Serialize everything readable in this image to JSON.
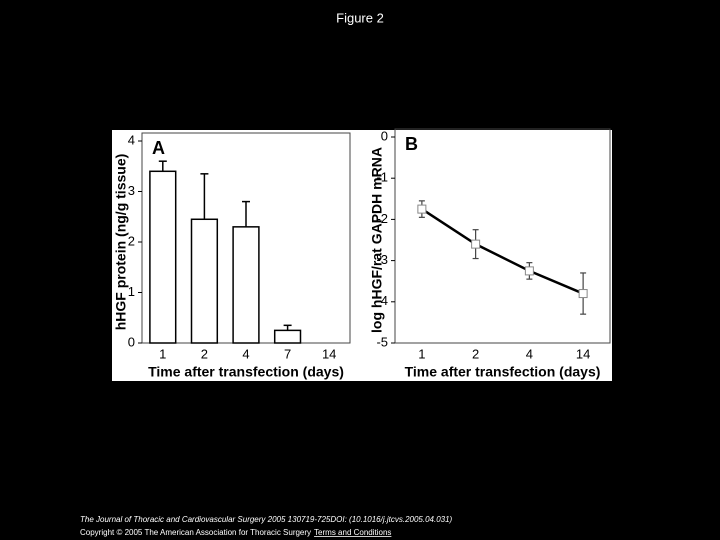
{
  "header": {
    "title": "Figure 2"
  },
  "chart_data": [
    {
      "type": "bar",
      "panel": "A",
      "x_label": "Time after transfection (days)",
      "y_label": "hHGF protein (ng/g tissue)",
      "categories": [
        "1",
        "2",
        "4",
        "7",
        "14"
      ],
      "values": [
        3.4,
        2.45,
        2.3,
        0.25,
        null
      ],
      "errors": [
        0.2,
        0.9,
        0.5,
        0.1,
        null
      ],
      "color": "#ffffff",
      "ylim": [
        0,
        4
      ],
      "yticks": [
        0,
        1,
        2,
        3,
        4
      ]
    },
    {
      "type": "line",
      "panel": "B",
      "x_label": "Time after transfection (days)",
      "y_label": "log hHGF/rat GAPDH mRNA",
      "categories": [
        "1",
        "2",
        "4",
        "14"
      ],
      "values": [
        -1.75,
        -2.6,
        -3.25,
        -3.8
      ],
      "errors": [
        0.2,
        0.35,
        0.2,
        0.5
      ],
      "color": "#000000",
      "ylim": [
        -5,
        0
      ],
      "yticks": [
        0,
        -1,
        -2,
        -3,
        -4,
        -5
      ]
    }
  ],
  "footer": {
    "citation": "The Journal of Thoracic and Cardiovascular Surgery 2005 130719-725DOI: (10.1016/j.jtcvs.2005.04.031)",
    "copyright": "Copyright © 2005 The American Association for Thoracic Surgery",
    "link": "Terms and Conditions"
  }
}
